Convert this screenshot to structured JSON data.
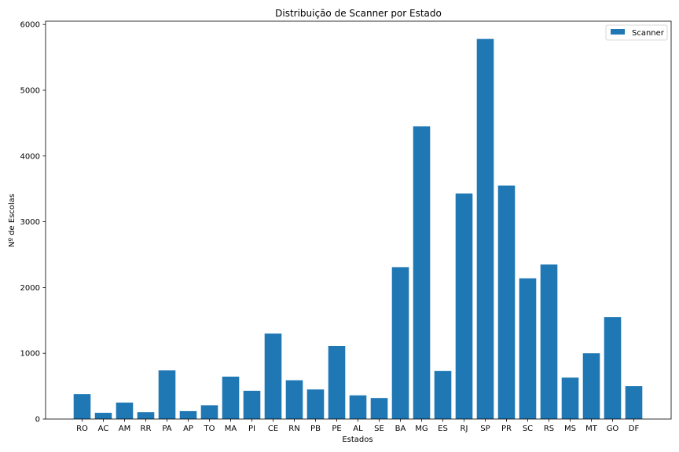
{
  "chart_data": {
    "type": "bar",
    "title": "Distribuição de Scanner por Estado",
    "xlabel": "Estados",
    "ylabel": "Nº de Escolas",
    "categories": [
      "RO",
      "AC",
      "AM",
      "RR",
      "PA",
      "AP",
      "TO",
      "MA",
      "PI",
      "CE",
      "RN",
      "PB",
      "PE",
      "AL",
      "SE",
      "BA",
      "MG",
      "ES",
      "RJ",
      "SP",
      "PR",
      "SC",
      "RS",
      "MS",
      "MT",
      "GO",
      "DF"
    ],
    "series": [
      {
        "name": "Scanner",
        "color": "#1f77b4",
        "values": [
          380,
          95,
          250,
          105,
          740,
          120,
          210,
          645,
          430,
          1300,
          590,
          450,
          1110,
          360,
          320,
          2310,
          4450,
          730,
          3430,
          5780,
          3550,
          2140,
          2350,
          630,
          1000,
          1550,
          500
        ]
      }
    ],
    "ylim": [
      0,
      6050
    ],
    "yticks": [
      0,
      1000,
      2000,
      3000,
      4000,
      5000,
      6000
    ],
    "ytick_labels": [
      "0",
      "1000",
      "2000",
      "3000",
      "4000",
      "5000",
      "6000"
    ],
    "legend_position": "upper right",
    "grid": false
  }
}
